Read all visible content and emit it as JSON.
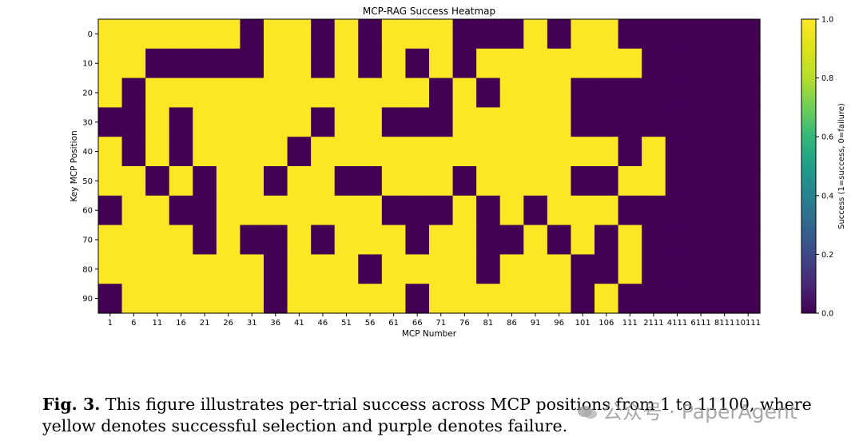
{
  "chart_data": {
    "type": "heatmap",
    "title": "MCP-RAG Success Heatmap",
    "xlabel": "MCP Number",
    "ylabel": "Key MCP Position",
    "x_ticks": [
      "1",
      "6",
      "11",
      "16",
      "21",
      "26",
      "31",
      "36",
      "41",
      "46",
      "51",
      "56",
      "61",
      "66",
      "71",
      "76",
      "81",
      "86",
      "91",
      "96",
      "101",
      "106",
      "111",
      "2111",
      "4111",
      "6111",
      "8111",
      "10111"
    ],
    "y_ticks": [
      "0",
      "10",
      "20",
      "30",
      "40",
      "50",
      "60",
      "70",
      "80",
      "90"
    ],
    "colorbar": {
      "label": "Success (1=success, 0=failure)",
      "ticks": [
        "0.0",
        "0.2",
        "0.4",
        "0.6",
        "0.8",
        "1.0"
      ],
      "range": [
        0,
        1
      ]
    },
    "colors": {
      "success": "#fde725",
      "failure": "#440154"
    },
    "rows": [
      [
        1,
        1,
        1,
        1,
        1,
        1,
        0,
        1,
        1,
        0,
        1,
        0,
        1,
        1,
        1,
        0,
        0,
        0,
        1,
        0,
        1,
        1,
        0,
        0,
        0,
        0,
        0,
        0
      ],
      [
        1,
        1,
        0,
        0,
        0,
        0,
        0,
        1,
        1,
        0,
        1,
        0,
        1,
        0,
        1,
        0,
        1,
        1,
        1,
        1,
        1,
        1,
        1,
        0,
        0,
        0,
        0,
        0
      ],
      [
        1,
        0,
        1,
        1,
        1,
        1,
        1,
        1,
        1,
        1,
        1,
        1,
        1,
        1,
        0,
        1,
        0,
        1,
        1,
        1,
        0,
        0,
        0,
        0,
        0,
        0,
        0,
        0
      ],
      [
        0,
        0,
        1,
        0,
        1,
        1,
        1,
        1,
        1,
        0,
        1,
        1,
        0,
        0,
        0,
        1,
        1,
        1,
        1,
        1,
        0,
        0,
        0,
        0,
        0,
        0,
        0,
        0
      ],
      [
        1,
        0,
        1,
        0,
        1,
        1,
        1,
        1,
        0,
        1,
        1,
        1,
        1,
        1,
        1,
        1,
        1,
        1,
        1,
        1,
        1,
        1,
        0,
        1,
        0,
        0,
        0,
        0
      ],
      [
        1,
        1,
        0,
        1,
        0,
        1,
        1,
        0,
        1,
        1,
        0,
        0,
        1,
        1,
        1,
        0,
        1,
        1,
        1,
        1,
        0,
        0,
        1,
        1,
        0,
        0,
        0,
        0
      ],
      [
        0,
        1,
        1,
        0,
        0,
        1,
        1,
        1,
        1,
        1,
        1,
        1,
        0,
        0,
        0,
        1,
        0,
        1,
        0,
        1,
        1,
        1,
        0,
        0,
        0,
        0,
        0,
        0
      ],
      [
        1,
        1,
        1,
        1,
        0,
        1,
        0,
        0,
        1,
        0,
        1,
        1,
        1,
        0,
        1,
        1,
        0,
        0,
        1,
        0,
        1,
        0,
        1,
        0,
        0,
        0,
        0,
        0
      ],
      [
        1,
        1,
        1,
        1,
        1,
        1,
        1,
        0,
        1,
        1,
        1,
        0,
        1,
        1,
        1,
        1,
        0,
        1,
        1,
        1,
        0,
        0,
        1,
        0,
        0,
        0,
        0,
        0
      ],
      [
        0,
        1,
        1,
        1,
        1,
        1,
        1,
        0,
        1,
        1,
        1,
        1,
        1,
        0,
        1,
        1,
        1,
        1,
        1,
        1,
        0,
        1,
        0,
        0,
        0,
        0,
        0,
        0
      ]
    ]
  },
  "caption": {
    "label": "Fig. 3.",
    "text": "This figure illustrates per-trial success across MCP positions from 1 to 11100, where yellow denotes successful selection and purple denotes failure."
  },
  "watermark": {
    "text": "公众号 · PaperAgent"
  }
}
